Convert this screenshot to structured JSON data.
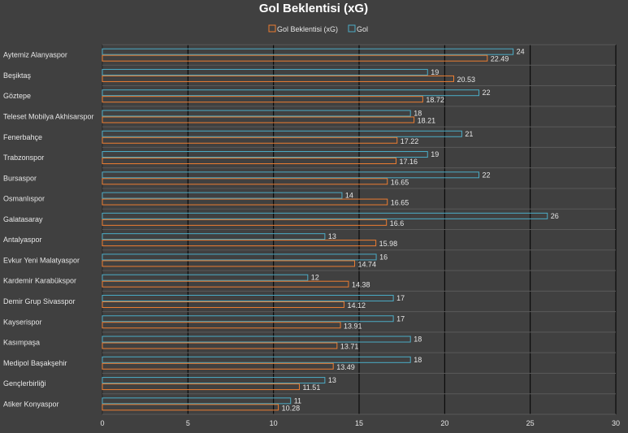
{
  "chart_data": {
    "type": "bar",
    "orientation": "horizontal",
    "title": "Gol Beklentisi (xG)",
    "xlim": [
      0,
      30
    ],
    "xticks": [
      0,
      5,
      10,
      15,
      20,
      25,
      30
    ],
    "grid": true,
    "legend_position": "top",
    "categories": [
      "Aytemiz Alanyaspor",
      "Beşiktaş",
      "Göztepe",
      "Teleset Mobilya Akhisarspor",
      "Fenerbahçe",
      "Trabzonspor",
      "Bursaspor",
      "Osmanlıspor",
      "Galatasaray",
      "Antalyaspor",
      "Evkur Yeni Malatyaspor",
      "Kardemir Karabükspor",
      "Demir Grup Sivasspor",
      "Kayserispor",
      "Kasımpaşa",
      "Medipol Başakşehir",
      "Gençlerbirliği",
      "Atiker Konyaspor"
    ],
    "series": [
      {
        "name": "Gol Beklentisi (xG)",
        "color": "#ed7d31",
        "values": [
          22.49,
          20.53,
          18.72,
          18.21,
          17.22,
          17.16,
          16.65,
          16.65,
          16.6,
          15.98,
          14.74,
          14.38,
          14.12,
          13.91,
          13.71,
          13.49,
          11.51,
          10.28
        ]
      },
      {
        "name": "Gol",
        "color": "#4bacc6",
        "values": [
          24,
          19,
          22,
          18,
          21,
          19,
          22,
          14,
          26,
          13,
          16,
          12,
          17,
          17,
          18,
          18,
          13,
          11
        ]
      }
    ]
  }
}
